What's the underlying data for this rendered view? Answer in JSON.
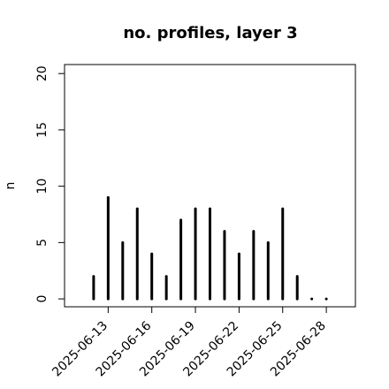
{
  "chart_data": {
    "type": "histline",
    "title": "no. profiles, layer 3",
    "y_label": "n",
    "x": [
      "2025-06-12",
      "2025-06-13",
      "2025-06-14",
      "2025-06-15",
      "2025-06-16",
      "2025-06-17",
      "2025-06-18",
      "2025-06-19",
      "2025-06-20",
      "2025-06-21",
      "2025-06-22",
      "2025-06-23",
      "2025-06-24",
      "2025-06-25",
      "2025-06-26",
      "2025-06-27",
      "2025-06-28"
    ],
    "values": [
      2,
      9,
      5,
      8,
      4,
      2,
      7,
      8,
      8,
      6,
      4,
      6,
      5,
      8,
      2,
      0,
      0
    ],
    "color": "#000000",
    "xlim": [
      "2025-06-10",
      "2025-06-30"
    ],
    "xticks": [
      "2025-06-13",
      "2025-06-16",
      "2025-06-19",
      "2025-06-22",
      "2025-06-25",
      "2025-06-28"
    ],
    "xtick_colors": [
      "#000000",
      "#000000",
      "#228b22",
      "#000000",
      "#000000",
      "#000000"
    ],
    "ylim": [
      -0.7,
      20.8
    ],
    "yticks": [
      0,
      5,
      10,
      15,
      20
    ]
  }
}
